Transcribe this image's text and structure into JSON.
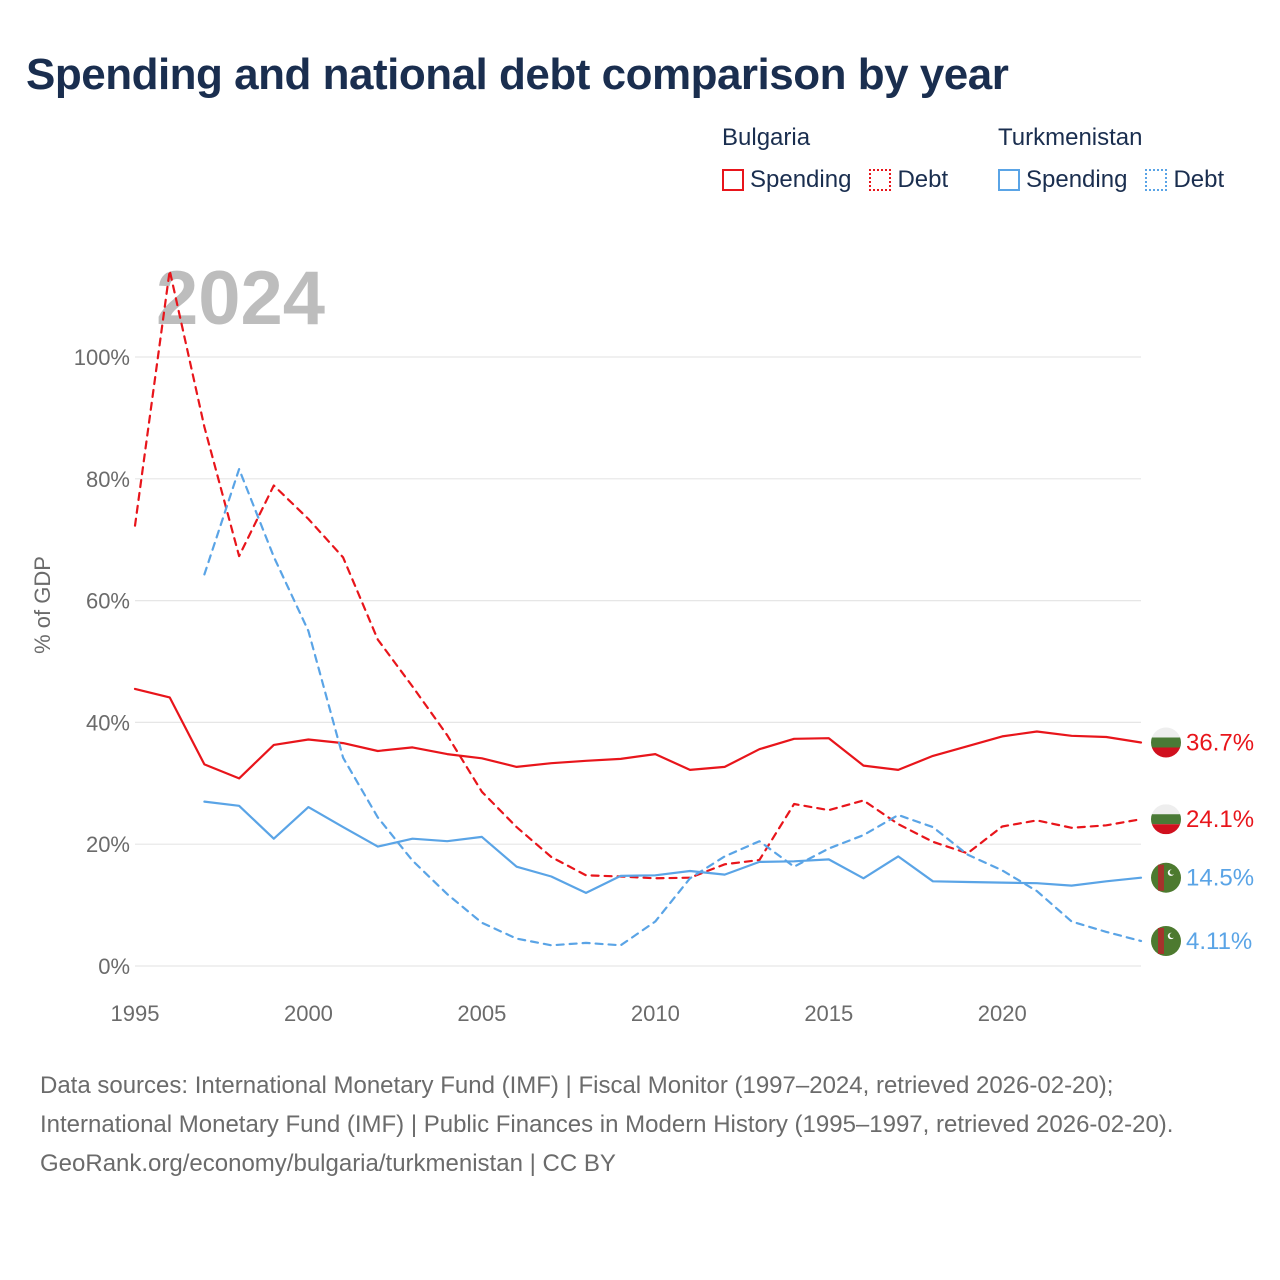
{
  "title": "Spending and national debt comparison by year",
  "legend": {
    "groups": [
      {
        "name": "Bulgaria",
        "items": [
          {
            "label": "Spending",
            "style": "solid"
          },
          {
            "label": "Debt",
            "style": "dotted"
          }
        ],
        "color": "#e8151b"
      },
      {
        "name": "Turkmenistan",
        "items": [
          {
            "label": "Spending",
            "style": "solid"
          },
          {
            "label": "Debt",
            "style": "dotted"
          }
        ],
        "color": "#5aa4e6"
      }
    ]
  },
  "colors": {
    "bulgaria": "#e8151b",
    "turkmenistan": "#5aa4e6",
    "grid": "#e6e6e6",
    "tick": "#6b6b6b",
    "watermark": "#bdbdbd"
  },
  "year_watermark": "2024",
  "chart_data": {
    "type": "line",
    "title": "Spending and national debt comparison by year",
    "ylabel": "% of GDP",
    "xlabel": "",
    "xlim": [
      1995,
      2024
    ],
    "ylim": [
      0,
      100
    ],
    "x_ticks": [
      1995,
      2000,
      2005,
      2010,
      2015,
      2020
    ],
    "y_ticks": [
      0,
      20,
      40,
      60,
      80,
      100
    ],
    "y_tick_labels": [
      "0%",
      "20%",
      "40%",
      "60%",
      "80%",
      "100%"
    ],
    "legend_position": "top-right",
    "series": [
      {
        "name": "Bulgaria Spending",
        "country": "Bulgaria",
        "metric": "Spending",
        "style": "solid",
        "color": "#e8151b",
        "end_label": "36.7%",
        "points": [
          [
            1995,
            45.5
          ],
          [
            1996,
            44.1
          ],
          [
            1997,
            33.1
          ],
          [
            1998,
            30.8
          ],
          [
            1999,
            36.3
          ],
          [
            2000,
            37.2
          ],
          [
            2001,
            36.6
          ],
          [
            2002,
            35.3
          ],
          [
            2003,
            35.9
          ],
          [
            2004,
            34.8
          ],
          [
            2005,
            34.1
          ],
          [
            2006,
            32.7
          ],
          [
            2007,
            33.3
          ],
          [
            2008,
            33.7
          ],
          [
            2009,
            34.0
          ],
          [
            2010,
            34.8
          ],
          [
            2011,
            32.2
          ],
          [
            2012,
            32.7
          ],
          [
            2013,
            35.6
          ],
          [
            2014,
            37.3
          ],
          [
            2015,
            37.4
          ],
          [
            2016,
            32.9
          ],
          [
            2017,
            32.2
          ],
          [
            2018,
            34.5
          ],
          [
            2019,
            36.1
          ],
          [
            2020,
            37.7
          ],
          [
            2021,
            38.5
          ],
          [
            2022,
            37.8
          ],
          [
            2023,
            37.6
          ],
          [
            2024,
            36.7
          ]
        ]
      },
      {
        "name": "Bulgaria Debt",
        "country": "Bulgaria",
        "metric": "Debt",
        "style": "dashed",
        "color": "#e8151b",
        "end_label": "24.1%",
        "points": [
          [
            1995,
            72.3
          ],
          [
            1996,
            114.2
          ],
          [
            1997,
            88.5
          ],
          [
            1998,
            67.3
          ],
          [
            1999,
            78.9
          ],
          [
            2000,
            73.4
          ],
          [
            2001,
            67.1
          ],
          [
            2002,
            53.6
          ],
          [
            2003,
            45.9
          ],
          [
            2004,
            37.9
          ],
          [
            2005,
            28.6
          ],
          [
            2006,
            22.8
          ],
          [
            2007,
            17.9
          ],
          [
            2008,
            14.9
          ],
          [
            2009,
            14.7
          ],
          [
            2010,
            14.4
          ],
          [
            2011,
            14.5
          ],
          [
            2012,
            16.7
          ],
          [
            2013,
            17.4
          ],
          [
            2014,
            26.6
          ],
          [
            2015,
            25.6
          ],
          [
            2016,
            27.2
          ],
          [
            2017,
            23.3
          ],
          [
            2018,
            20.4
          ],
          [
            2019,
            18.5
          ],
          [
            2020,
            22.9
          ],
          [
            2021,
            23.9
          ],
          [
            2022,
            22.7
          ],
          [
            2023,
            23.1
          ],
          [
            2024,
            24.1
          ]
        ]
      },
      {
        "name": "Turkmenistan Spending",
        "country": "Turkmenistan",
        "metric": "Spending",
        "style": "solid",
        "color": "#5aa4e6",
        "end_label": "14.5%",
        "points": [
          [
            1997,
            27.0
          ],
          [
            1998,
            26.3
          ],
          [
            1999,
            20.9
          ],
          [
            2000,
            26.1
          ],
          [
            2001,
            22.8
          ],
          [
            2002,
            19.6
          ],
          [
            2003,
            20.9
          ],
          [
            2004,
            20.5
          ],
          [
            2005,
            21.2
          ],
          [
            2006,
            16.3
          ],
          [
            2007,
            14.7
          ],
          [
            2008,
            12.0
          ],
          [
            2009,
            14.8
          ],
          [
            2010,
            14.9
          ],
          [
            2011,
            15.6
          ],
          [
            2012,
            15.0
          ],
          [
            2013,
            17.1
          ],
          [
            2014,
            17.2
          ],
          [
            2015,
            17.5
          ],
          [
            2016,
            14.4
          ],
          [
            2017,
            18.0
          ],
          [
            2018,
            13.9
          ],
          [
            2019,
            13.8
          ],
          [
            2020,
            13.7
          ],
          [
            2021,
            13.6
          ],
          [
            2022,
            13.2
          ],
          [
            2023,
            13.9
          ],
          [
            2024,
            14.5
          ]
        ]
      },
      {
        "name": "Turkmenistan Debt",
        "country": "Turkmenistan",
        "metric": "Debt",
        "style": "dashed",
        "color": "#5aa4e6",
        "end_label": "4.11%",
        "points": [
          [
            1997,
            64.3
          ],
          [
            1998,
            81.6
          ],
          [
            1999,
            67.2
          ],
          [
            2000,
            55.0
          ],
          [
            2001,
            34.2
          ],
          [
            2002,
            24.4
          ],
          [
            2003,
            17.3
          ],
          [
            2004,
            11.8
          ],
          [
            2005,
            7.1
          ],
          [
            2006,
            4.5
          ],
          [
            2007,
            3.4
          ],
          [
            2008,
            3.8
          ],
          [
            2009,
            3.4
          ],
          [
            2010,
            7.3
          ],
          [
            2011,
            14.4
          ],
          [
            2012,
            18.0
          ],
          [
            2013,
            20.5
          ],
          [
            2014,
            16.3
          ],
          [
            2015,
            19.3
          ],
          [
            2016,
            21.5
          ],
          [
            2017,
            24.8
          ],
          [
            2018,
            22.8
          ],
          [
            2019,
            18.3
          ],
          [
            2020,
            15.7
          ],
          [
            2021,
            12.3
          ],
          [
            2022,
            7.3
          ],
          [
            2023,
            5.6
          ],
          [
            2024,
            4.11
          ]
        ]
      }
    ]
  },
  "footer": {
    "sources": "Data sources: International Monetary Fund (IMF) | Fiscal Monitor (1997–2024, retrieved 2026-02-20); International Monetary Fund (IMF) | Public Finances in Modern History (1995–1997, retrieved 2026-02-20).",
    "credit": "GeoRank.org/economy/bulgaria/turkmenistan | CC BY"
  }
}
